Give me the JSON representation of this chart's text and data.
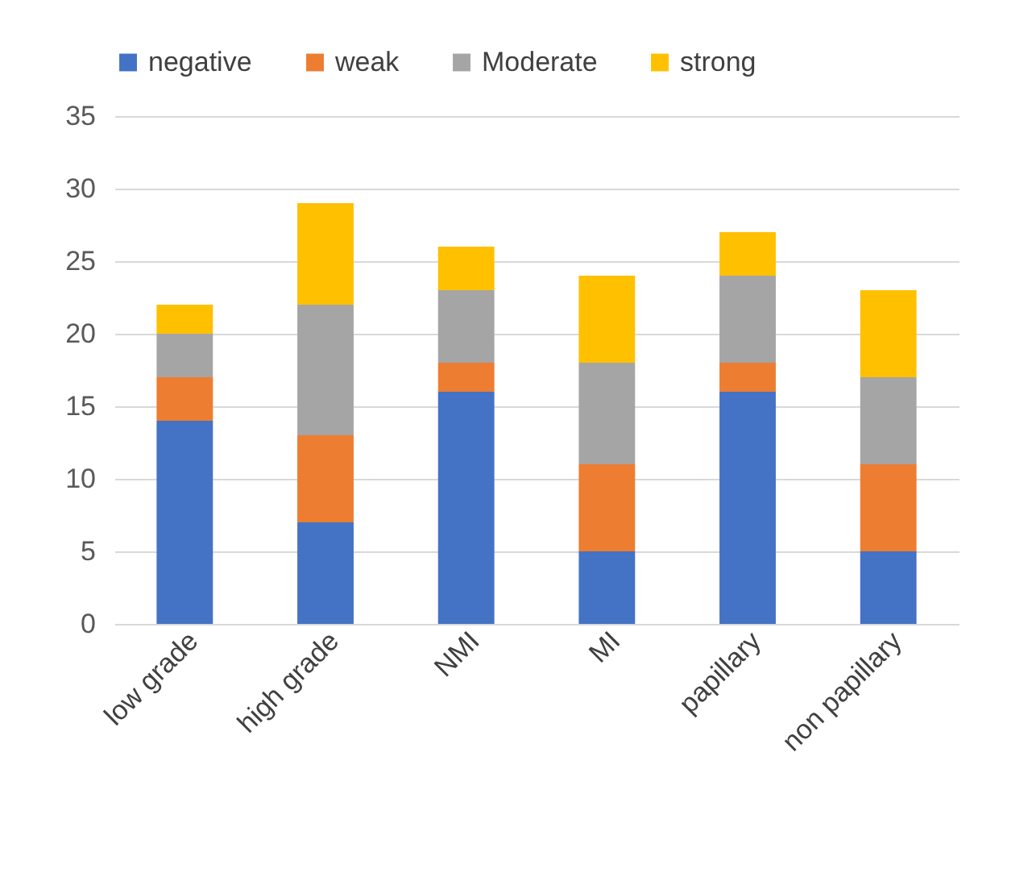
{
  "chart_data": {
    "type": "bar",
    "stacked": true,
    "categories": [
      "low grade",
      "high grade",
      "NMI",
      "MI",
      "papillary",
      "non papillary"
    ],
    "series": [
      {
        "name": "negative",
        "color": "#4472c4",
        "values": [
          14,
          7,
          16,
          5,
          16,
          5
        ]
      },
      {
        "name": "weak",
        "color": "#ed7d31",
        "values": [
          3,
          6,
          2,
          6,
          2,
          6
        ]
      },
      {
        "name": "Moderate",
        "color": "#a5a5a5",
        "values": [
          3,
          9,
          5,
          7,
          6,
          6
        ]
      },
      {
        "name": "strong",
        "color": "#ffc000",
        "values": [
          2,
          7,
          3,
          6,
          3,
          6
        ]
      }
    ],
    "ylim": [
      0,
      35
    ],
    "yticks": [
      0,
      5,
      10,
      15,
      20,
      25,
      30,
      35
    ],
    "grid": "y",
    "legend": "top"
  }
}
